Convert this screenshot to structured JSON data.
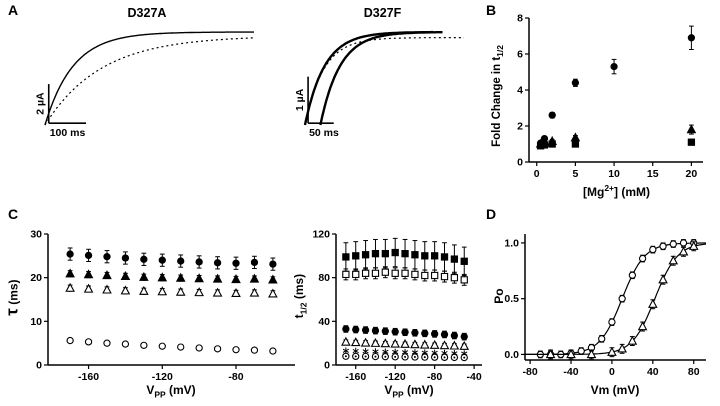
{
  "figure": {
    "panel_labels": {
      "a": "A",
      "b": "B",
      "c": "C",
      "d": "D"
    }
  },
  "chart_data": [
    {
      "id": "traceA",
      "type": "trace",
      "title": "D327A",
      "duration_ms": 560,
      "m": [
        10,
        8,
        6,
        14
      ],
      "traces": [
        {
          "style": "solid",
          "tau_ms": 75,
          "amplitude": 1.0,
          "delay_ms": 0,
          "width": 1.4
        },
        {
          "style": "dotted",
          "tau_ms": 150,
          "amplitude": 0.96,
          "delay_ms": 0,
          "width": 1.2
        }
      ],
      "scalebar": {
        "v_label": "2 µA",
        "h_label": "100 ms",
        "t0_ms": 10,
        "dur_ms": 100,
        "y0": 0.02,
        "amp": 0.42
      }
    },
    {
      "id": "traceF",
      "type": "trace",
      "title": "D327F",
      "duration_ms": 310,
      "m": [
        10,
        8,
        6,
        14
      ],
      "traces": [
        {
          "style": "solid",
          "tau_ms": 38,
          "amplitude": 1.0,
          "delay_ms": 0,
          "width": 2.4,
          "t_end": 250
        },
        {
          "style": "solid",
          "tau_ms": 38,
          "amplitude": 1.0,
          "delay_ms": 30,
          "width": 2.4,
          "t_end": 268
        },
        {
          "style": "dotted",
          "tau_ms": 36,
          "amplitude": 0.94,
          "delay_ms": 0,
          "width": 1.2
        }
      ],
      "scalebar": {
        "v_label": "1 µA",
        "h_label": "50 ms",
        "t0_ms": 6,
        "dur_ms": 50,
        "y0": 0.02,
        "amp": 0.5
      }
    },
    {
      "id": "mg",
      "type": "scatter",
      "xlabel": {
        "pre": "[Mg",
        "sup": "2+",
        "post": "] (mM)"
      },
      "ylabel": {
        "pre": "Fold Change in t",
        "sub": "1/2"
      },
      "xlim": [
        -1,
        21.5
      ],
      "ylim": [
        0,
        8
      ],
      "xticks": [
        0,
        5,
        10,
        15,
        20
      ],
      "yticks": [
        0,
        2,
        4,
        6,
        8
      ],
      "m": [
        34,
        12,
        14,
        30
      ],
      "series": [
        {
          "marker": "filled-circle",
          "x": [
            0.5,
            1,
            2,
            5,
            10,
            20
          ],
          "y": [
            1.05,
            1.3,
            2.6,
            4.4,
            5.3,
            6.9
          ],
          "err": [
            0.1,
            0.12,
            0.15,
            0.2,
            0.4,
            0.65
          ]
        },
        {
          "marker": "filled-triangle",
          "x": [
            0.5,
            1,
            2,
            5,
            20
          ],
          "y": [
            1.0,
            1.05,
            1.15,
            1.35,
            1.8
          ],
          "err": [
            0.08,
            0.08,
            0.1,
            0.12,
            0.25
          ]
        },
        {
          "marker": "filled-square",
          "x": [
            0.5,
            1,
            2,
            5,
            20
          ],
          "y": [
            0.9,
            0.95,
            1.0,
            1.0,
            1.1
          ],
          "err": [
            0.06,
            0.06,
            0.08,
            0.08,
            0.12
          ]
        }
      ]
    },
    {
      "id": "tau",
      "type": "scatter",
      "xlabel": {
        "pre": "V",
        "sub": "PP",
        "post": " (mV)"
      },
      "ylabel": {
        "pre": "τ",
        "post": " (ms)"
      },
      "xlim": [
        -182,
        -48
      ],
      "ylim": [
        0,
        30
      ],
      "xticks": [
        -160,
        -120,
        -80
      ],
      "yticks": [
        0,
        10,
        20,
        30
      ],
      "m": [
        28,
        12,
        10,
        24
      ],
      "series": [
        {
          "marker": "filled-circle",
          "x": [
            -170,
            -160,
            -150,
            -140,
            -130,
            -120,
            -110,
            -100,
            -90,
            -80,
            -70,
            -60
          ],
          "y": [
            25.4,
            25.1,
            24.8,
            24.5,
            24.2,
            24.0,
            23.8,
            23.6,
            23.4,
            23.3,
            23.5,
            23.1
          ],
          "err": 1.4
        },
        {
          "marker": "filled-triangle",
          "x": [
            -170,
            -160,
            -150,
            -140,
            -130,
            -120,
            -110,
            -100,
            -90,
            -80,
            -70,
            -60
          ],
          "y": [
            20.9,
            20.7,
            20.5,
            20.3,
            20.1,
            20.0,
            19.9,
            19.8,
            19.7,
            19.6,
            19.7,
            19.5
          ],
          "err": 0.7
        },
        {
          "marker": "open-triangle",
          "x": [
            -170,
            -160,
            -150,
            -140,
            -130,
            -120,
            -110,
            -100,
            -90,
            -80,
            -70,
            -60
          ],
          "y": [
            17.6,
            17.4,
            17.2,
            17.0,
            16.9,
            16.8,
            16.7,
            16.6,
            16.5,
            16.4,
            16.5,
            16.3
          ],
          "err": 0.7
        },
        {
          "marker": "open-circle",
          "x": [
            -170,
            -160,
            -150,
            -140,
            -130,
            -120,
            -110,
            -100,
            -90,
            -80,
            -70,
            -60
          ],
          "y": [
            5.6,
            5.3,
            5.0,
            4.8,
            4.5,
            4.3,
            4.1,
            3.9,
            3.7,
            3.5,
            3.4,
            3.2
          ],
          "err": 0.3
        }
      ]
    },
    {
      "id": "thalf",
      "type": "scatter",
      "xlabel": {
        "pre": "V",
        "sub": "PP",
        "post": " (mV)"
      },
      "ylabel": {
        "pre": "t",
        "sub": "1/2",
        "post": " (ms)"
      },
      "xlim": [
        -180,
        -32
      ],
      "ylim": [
        0,
        120
      ],
      "xticks": [
        -160,
        -120,
        -80,
        -40
      ],
      "yticks": [
        0,
        40,
        80,
        120
      ],
      "m": [
        36,
        12,
        8,
        24
      ],
      "series": [
        {
          "marker": "filled-square",
          "x": [
            -170,
            -160,
            -150,
            -140,
            -130,
            -120,
            -110,
            -100,
            -90,
            -80,
            -70,
            -60,
            -50
          ],
          "y": [
            99,
            100,
            101,
            102,
            102,
            103,
            102,
            101,
            100,
            100,
            99,
            97,
            95
          ],
          "err": 13
        },
        {
          "marker": "open-square",
          "x": [
            -170,
            -160,
            -150,
            -140,
            -130,
            -120,
            -110,
            -100,
            -90,
            -80,
            -70,
            -60,
            -50
          ],
          "y": [
            83,
            83,
            84,
            84,
            85,
            84,
            84,
            83,
            82,
            82,
            81,
            80,
            78
          ],
          "err": 5
        },
        {
          "marker": "filled-circle",
          "x": [
            -170,
            -160,
            -150,
            -140,
            -130,
            -120,
            -110,
            -100,
            -90,
            -80,
            -70,
            -60,
            -50
          ],
          "y": [
            33,
            32.5,
            32,
            31.5,
            31,
            30.5,
            30,
            29.5,
            29,
            28.5,
            28,
            27,
            26
          ],
          "err": 3
        },
        {
          "marker": "open-triangle",
          "x": [
            -170,
            -160,
            -150,
            -140,
            -130,
            -120,
            -110,
            -100,
            -90,
            -80,
            -70,
            -60,
            -50
          ],
          "y": [
            21,
            20.6,
            20.2,
            19.9,
            19.6,
            19.3,
            19,
            18.7,
            18.4,
            18.1,
            17.8,
            17.5,
            17.2
          ],
          "err": 2
        },
        {
          "marker": "asterisk",
          "x": [
            -170,
            -160,
            -150,
            -140,
            -130,
            -120,
            -110,
            -100,
            -90,
            -80,
            -70,
            -60,
            -50
          ],
          "y": [
            13,
            12.8,
            12.5,
            12.3,
            12.1,
            11.9,
            11.7,
            11.5,
            11.3,
            11.1,
            10.9,
            10.7,
            10.5
          ]
        },
        {
          "marker": "circle-dot",
          "x": [
            -170,
            -160,
            -150,
            -140,
            -130,
            -120,
            -110,
            -100,
            -90,
            -80,
            -70,
            -60,
            -50
          ],
          "y": [
            8,
            7.9,
            7.8,
            7.7,
            7.6,
            7.5,
            7.4,
            7.3,
            7.2,
            7.1,
            7.0,
            6.9,
            6.8
          ]
        }
      ]
    },
    {
      "id": "po",
      "type": "scatter",
      "xlabel": {
        "pre": "Vm (mV)"
      },
      "ylabel": {
        "pre": "Po"
      },
      "xlim": [
        -85,
        92
      ],
      "ylim": [
        -0.05,
        1.08
      ],
      "xticks": [
        -80,
        -40,
        0,
        40,
        80
      ],
      "yticks": [
        0,
        0.5,
        1
      ],
      "ytick_labels": [
        "0.0",
        "0.5",
        "1.0"
      ],
      "m": [
        30,
        12,
        14,
        24
      ],
      "series": [
        {
          "marker": "open-circle",
          "fit": {
            "v_half": 10,
            "slope": 11
          },
          "x": [
            -70,
            -60,
            -50,
            -40,
            -30,
            -20,
            -10,
            0,
            10,
            20,
            30,
            40,
            50,
            60,
            70,
            80
          ],
          "y": [
            0,
            0,
            0,
            0.01,
            0.03,
            0.06,
            0.14,
            0.29,
            0.5,
            0.71,
            0.86,
            0.94,
            0.97,
            0.99,
            1.0,
            1.0
          ],
          "err": 0.03
        },
        {
          "marker": "open-triangle",
          "fit": {
            "v_half": 42,
            "slope": 11
          },
          "x": [
            -60,
            -40,
            -20,
            0,
            10,
            20,
            30,
            40,
            50,
            60,
            70,
            80
          ],
          "y": [
            0,
            0,
            0,
            0.02,
            0.05,
            0.12,
            0.25,
            0.45,
            0.67,
            0.84,
            0.92,
            0.97
          ],
          "err": 0.04
        }
      ]
    }
  ]
}
